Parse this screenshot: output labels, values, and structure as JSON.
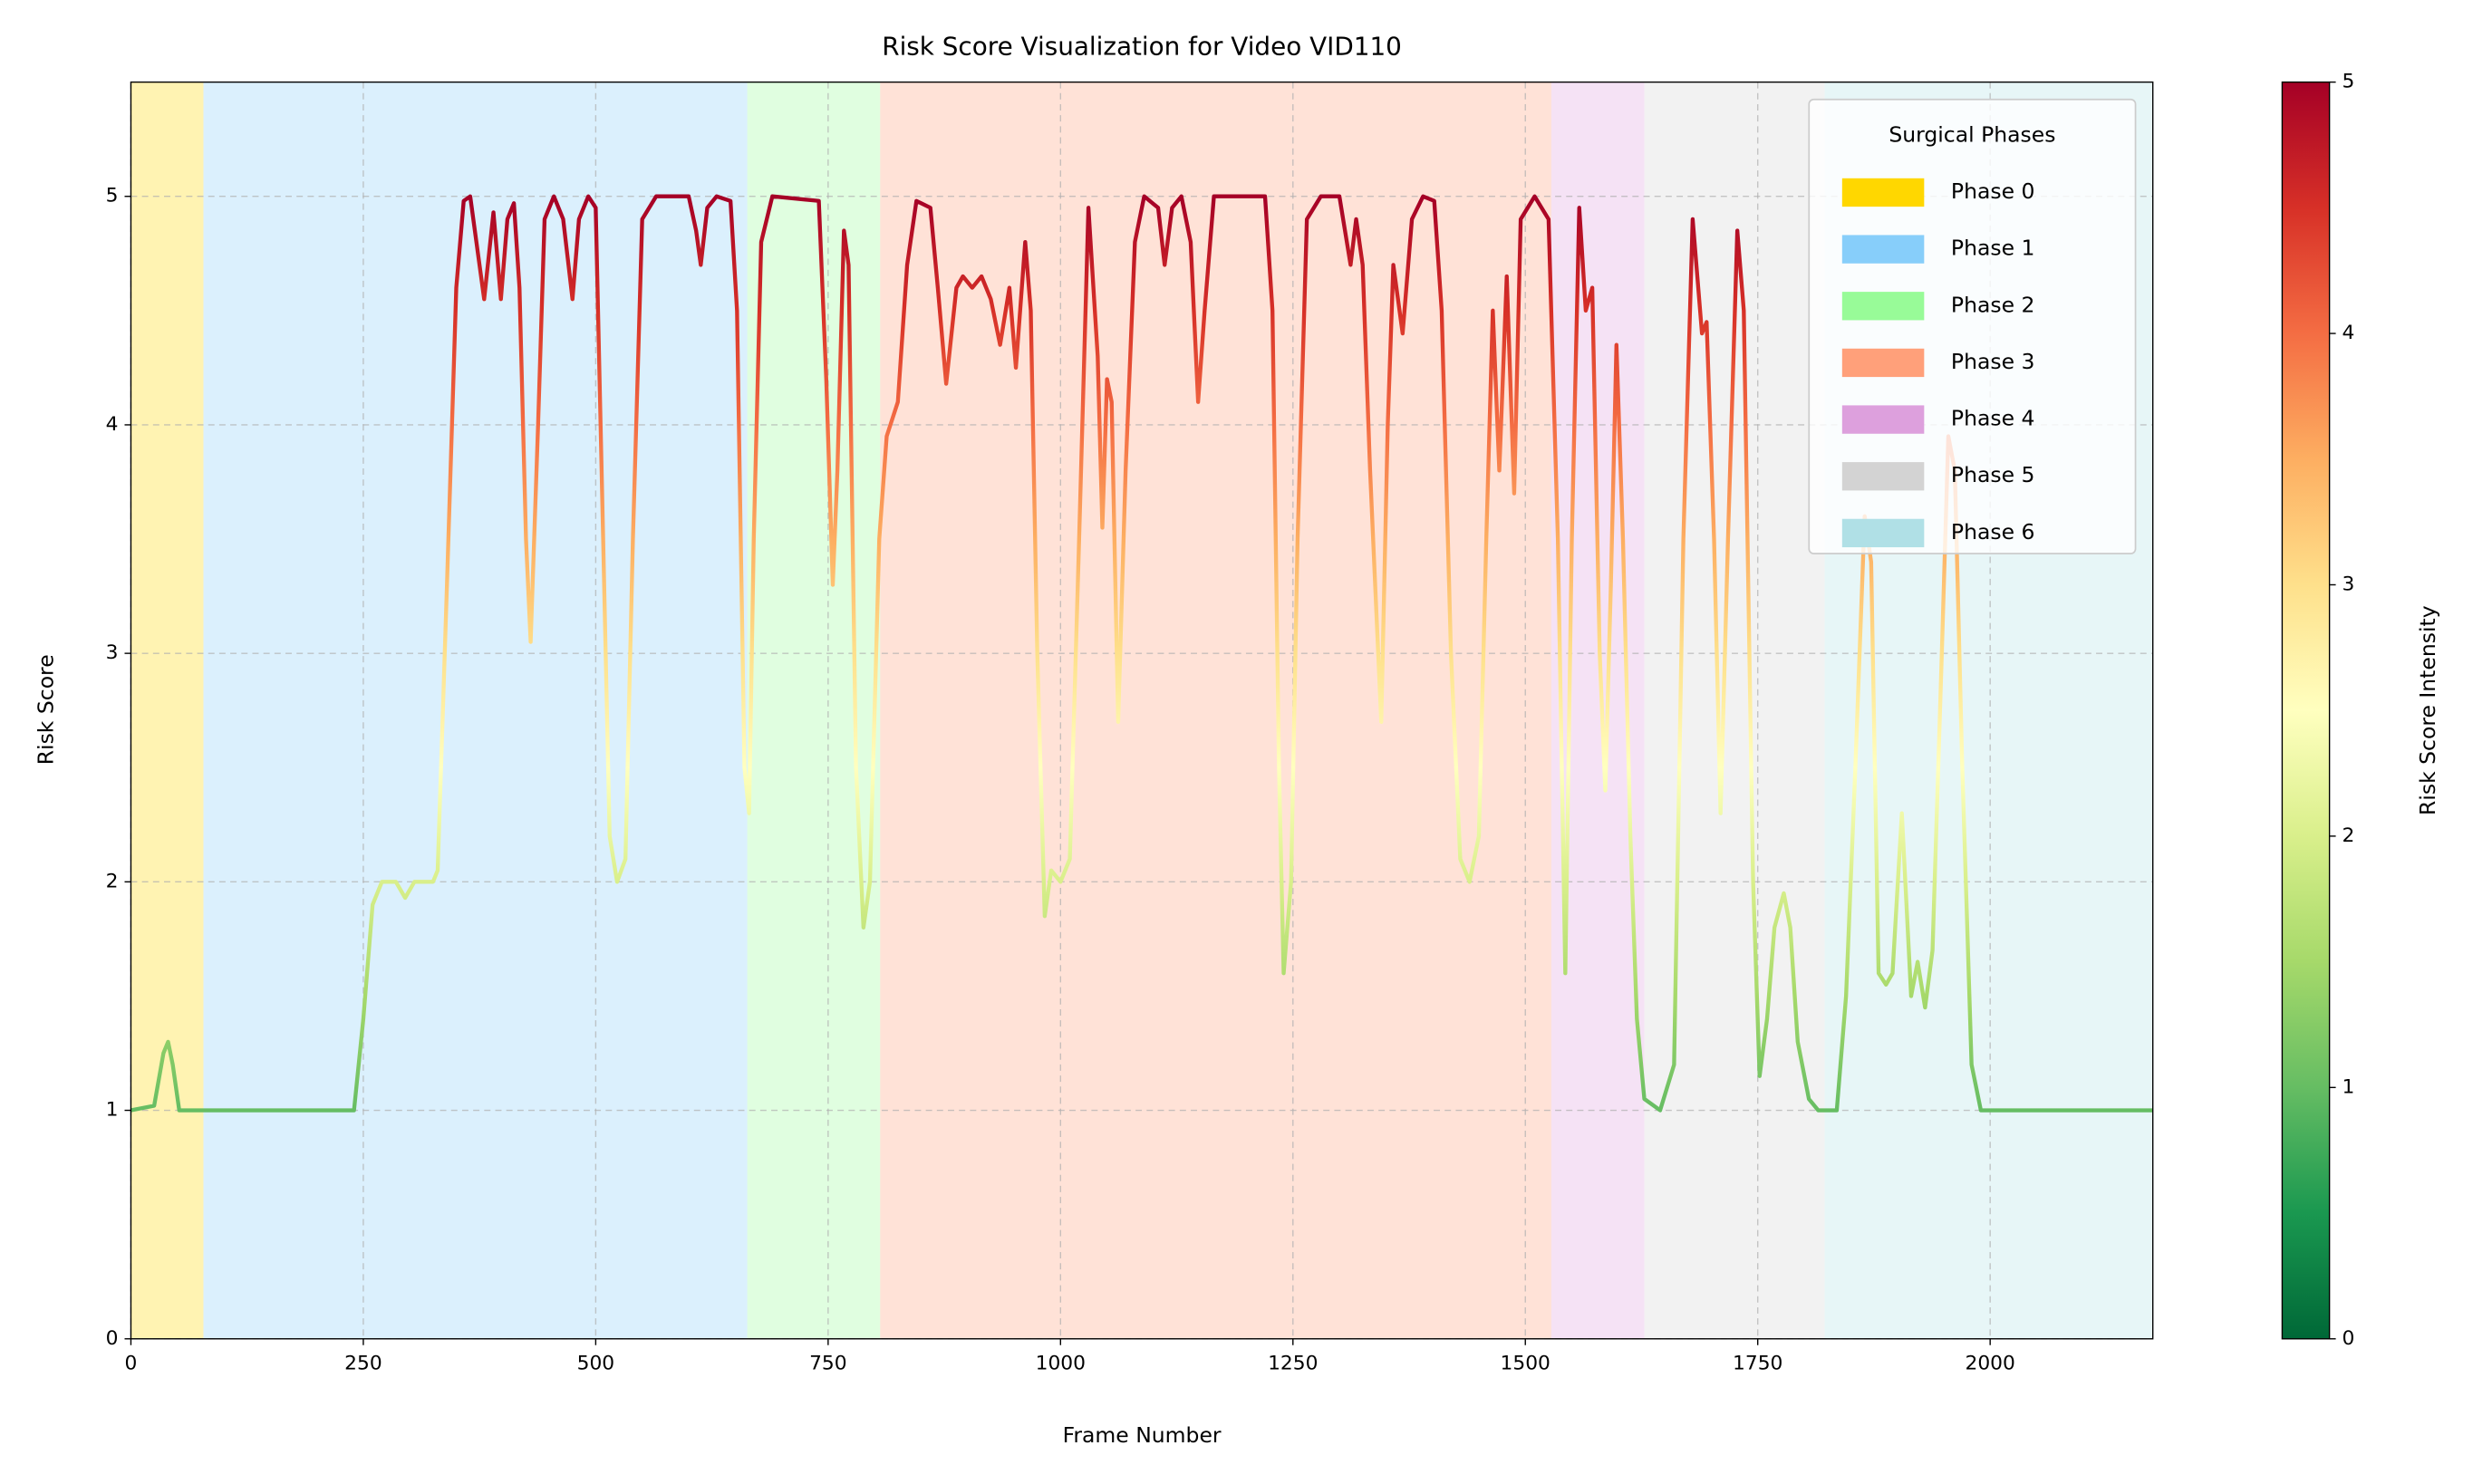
{
  "chart_data": {
    "type": "line",
    "title": "Risk Score Visualization for Video VID110",
    "x_label": "Frame Number",
    "y_label": "Risk Score",
    "xlim": [
      0,
      2175
    ],
    "ylim": [
      0,
      5.5
    ],
    "xticks": [
      0,
      250,
      500,
      750,
      1000,
      1250,
      1500,
      1750,
      2000
    ],
    "yticks": [
      0,
      1,
      2,
      3,
      4,
      5
    ],
    "grid": true,
    "legend_title": "Surgical Phases",
    "legend_position": "upper right",
    "phases": [
      {
        "name": "Phase 0",
        "start": 0,
        "end": 78,
        "color": "#FFD700"
      },
      {
        "name": "Phase 1",
        "start": 78,
        "end": 663,
        "color": "#87CEFA"
      },
      {
        "name": "Phase 2",
        "start": 663,
        "end": 806,
        "color": "#98FB98"
      },
      {
        "name": "Phase 3",
        "start": 806,
        "end": 1528,
        "color": "#FFA07A"
      },
      {
        "name": "Phase 4",
        "start": 1528,
        "end": 1628,
        "color": "#DDA0DD"
      },
      {
        "name": "Phase 5",
        "start": 1628,
        "end": 1822,
        "color": "#D3D3D3"
      },
      {
        "name": "Phase 6",
        "start": 1822,
        "end": 2175,
        "color": "#B0E0E6"
      }
    ],
    "colorbar": {
      "label": "Risk Score Intensity",
      "lim": [
        0,
        5
      ],
      "ticks": [
        0,
        1,
        2,
        3,
        4,
        5
      ],
      "colormap": [
        "#006837",
        "#1a9850",
        "#66bd63",
        "#a6d96a",
        "#d9ef8b",
        "#ffffbf",
        "#fee08b",
        "#fdae61",
        "#f46d43",
        "#d73027",
        "#a50026"
      ]
    },
    "x": [
      0,
      25,
      35,
      40,
      45,
      52,
      240,
      250,
      260,
      270,
      285,
      295,
      305,
      325,
      330,
      340,
      350,
      358,
      365,
      375,
      380,
      390,
      398,
      405,
      412,
      418,
      425,
      430,
      438,
      445,
      455,
      465,
      475,
      482,
      492,
      500,
      508,
      515,
      523,
      532,
      540,
      550,
      565,
      600,
      608,
      613,
      620,
      630,
      645,
      652,
      660,
      665,
      670,
      678,
      690,
      740,
      748,
      755,
      760,
      767,
      772,
      780,
      788,
      795,
      805,
      813,
      825,
      835,
      845,
      860,
      868,
      877,
      888,
      895,
      905,
      915,
      925,
      935,
      945,
      952,
      962,
      968,
      975,
      983,
      990,
      1000,
      1010,
      1020,
      1030,
      1040,
      1045,
      1050,
      1055,
      1062,
      1070,
      1080,
      1090,
      1105,
      1112,
      1120,
      1130,
      1140,
      1148,
      1155,
      1165,
      1220,
      1228,
      1235,
      1240,
      1248,
      1255,
      1265,
      1280,
      1300,
      1312,
      1318,
      1325,
      1333,
      1345,
      1352,
      1358,
      1368,
      1378,
      1390,
      1402,
      1410,
      1420,
      1430,
      1440,
      1450,
      1458,
      1465,
      1472,
      1480,
      1488,
      1495,
      1510,
      1525,
      1535,
      1543,
      1550,
      1558,
      1565,
      1572,
      1580,
      1586,
      1592,
      1598,
      1605,
      1613,
      1620,
      1628,
      1645,
      1660,
      1670,
      1680,
      1690,
      1695,
      1703,
      1710,
      1718,
      1728,
      1735,
      1745,
      1752,
      1760,
      1768,
      1778,
      1785,
      1793,
      1805,
      1815,
      1835,
      1845,
      1855,
      1865,
      1872,
      1880,
      1888,
      1895,
      1905,
      1915,
      1922,
      1930,
      1938,
      1948,
      1955,
      1962,
      1970,
      1980,
      1990,
      2175
    ],
    "values": [
      1,
      1.02,
      1.25,
      1.3,
      1.2,
      1,
      1,
      1.4,
      1.9,
      2,
      2,
      1.93,
      2,
      2,
      2.05,
      3.3,
      4.6,
      4.98,
      5,
      4.7,
      4.55,
      4.93,
      4.55,
      4.9,
      4.97,
      4.6,
      3.5,
      3.05,
      4,
      4.9,
      5,
      4.9,
      4.55,
      4.9,
      5,
      4.95,
      3.5,
      2.2,
      2,
      2.1,
      3.5,
      4.9,
      5,
      5,
      4.85,
      4.7,
      4.95,
      5,
      4.98,
      4.5,
      2.5,
      2.3,
      3.5,
      4.8,
      5,
      4.98,
      4.2,
      3.3,
      3.8,
      4.85,
      4.7,
      2.5,
      1.8,
      2,
      3.5,
      3.95,
      4.1,
      4.7,
      4.98,
      4.95,
      4.6,
      4.18,
      4.6,
      4.65,
      4.6,
      4.65,
      4.55,
      4.35,
      4.6,
      4.25,
      4.8,
      4.5,
      3,
      1.85,
      2.05,
      2,
      2.1,
      3.5,
      4.95,
      4.3,
      3.55,
      4.2,
      4.1,
      2.7,
      3.8,
      4.8,
      5,
      4.95,
      4.7,
      4.95,
      5,
      4.8,
      4.1,
      4.5,
      5,
      5,
      4.5,
      2.5,
      1.6,
      2,
      3.5,
      4.9,
      5,
      5,
      4.7,
      4.9,
      4.7,
      3.8,
      2.7,
      4,
      4.7,
      4.4,
      4.9,
      5,
      4.98,
      4.5,
      3,
      2.1,
      2,
      2.2,
      3.5,
      4.5,
      3.8,
      4.65,
      3.7,
      4.9,
      5,
      4.9,
      3.5,
      1.6,
      3.5,
      4.95,
      4.5,
      4.6,
      3,
      2.4,
      3.3,
      4.35,
      3.5,
      2.2,
      1.4,
      1.05,
      1,
      1.2,
      3.5,
      4.9,
      4.4,
      4.45,
      3.5,
      2.3,
      3.5,
      4.85,
      4.5,
      2,
      1.15,
      1.4,
      1.8,
      1.95,
      1.8,
      1.3,
      1.05,
      1,
      1,
      1.5,
      2.5,
      3.6,
      3.4,
      1.6,
      1.55,
      1.6,
      2.3,
      1.5,
      1.65,
      1.45,
      1.7,
      3,
      3.95,
      3.8,
      2.5,
      1.2,
      1,
      1
    ]
  }
}
